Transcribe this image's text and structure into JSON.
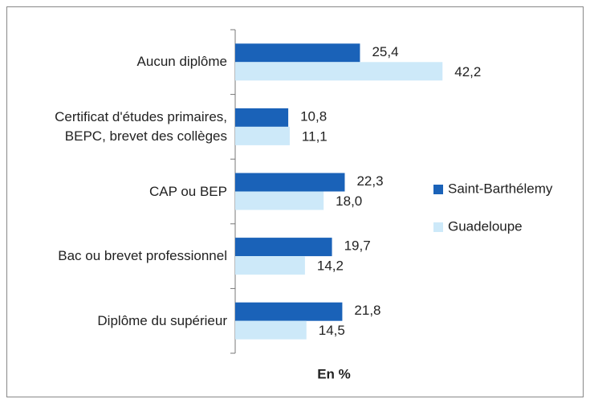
{
  "chart_data": {
    "type": "bar",
    "orientation": "horizontal",
    "xlabel": "En %",
    "categories": [
      "Aucun diplôme",
      "Certificat d'études primaires,\nBEPC, brevet des collèges",
      "CAP ou BEP",
      "Bac ou brevet professionnel",
      "Diplôme du supérieur"
    ],
    "series": [
      {
        "name": "Saint-Barthélemy",
        "color": "#1a62b8",
        "values": [
          25.4,
          10.8,
          22.3,
          19.7,
          21.8
        ],
        "value_labels": [
          "25,4",
          "10,8",
          "22,3",
          "19,7",
          "21,8"
        ]
      },
      {
        "name": "Guadeloupe",
        "color": "#cde9f9",
        "values": [
          42.2,
          11.1,
          18.0,
          14.2,
          14.5
        ],
        "value_labels": [
          "42,2",
          "11,1",
          "18,0",
          "14,2",
          "14,5"
        ]
      }
    ],
    "xlim": [
      0,
      50
    ],
    "legend": "right"
  }
}
